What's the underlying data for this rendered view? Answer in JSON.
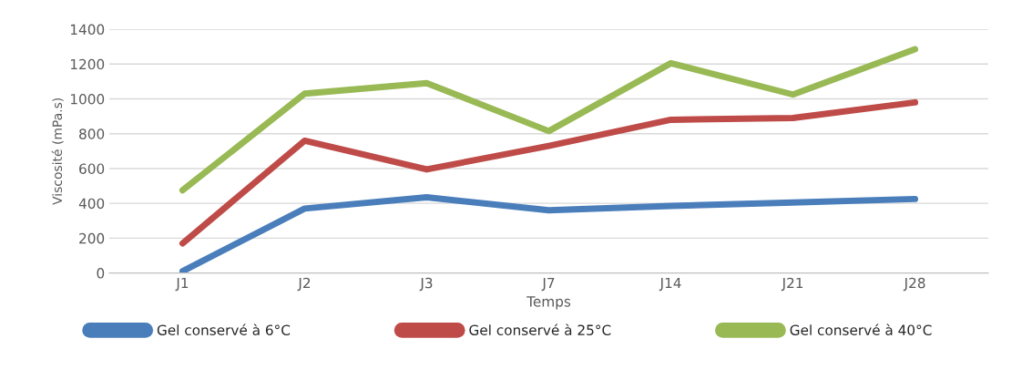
{
  "chart_data": {
    "type": "line",
    "xlabel": "Temps",
    "ylabel": "Viscosité (mPa.s)",
    "categories": [
      "J1",
      "J2",
      "J3",
      "J7",
      "J14",
      "J21",
      "J28"
    ],
    "series": [
      {
        "name": "Gel conservé à 6°C",
        "color": "#4a7ebb",
        "values": [
          10,
          370,
          435,
          360,
          385,
          405,
          425
        ]
      },
      {
        "name": "Gel conservé à 25°C",
        "color": "#be4b48",
        "values": [
          170,
          760,
          595,
          730,
          880,
          890,
          980
        ]
      },
      {
        "name": "Gel conservé à 40°C",
        "color": "#98b954",
        "values": [
          475,
          1030,
          1090,
          815,
          1205,
          1025,
          1285
        ]
      }
    ],
    "ylim": [
      0,
      1400
    ],
    "yticks": [
      0,
      200,
      400,
      600,
      800,
      1000,
      1200,
      1400
    ],
    "grid": "y",
    "legend": "bottom",
    "marker": "none",
    "line_style": "solid"
  }
}
